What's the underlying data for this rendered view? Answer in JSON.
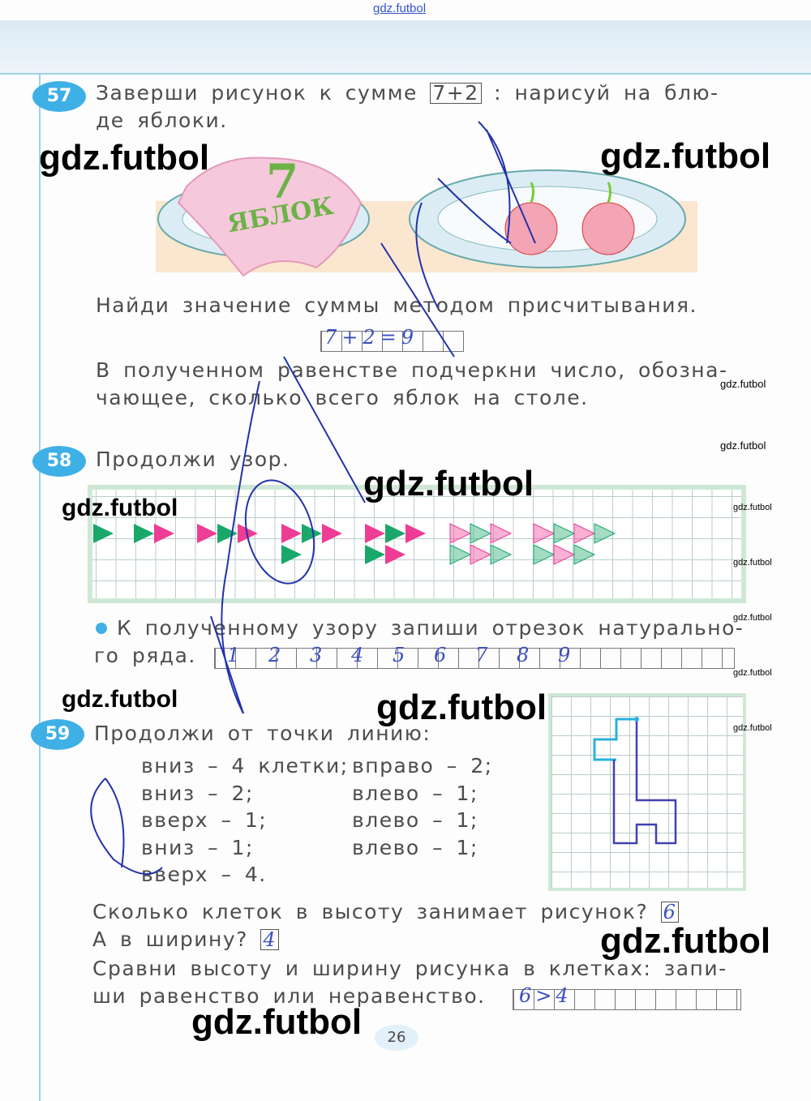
{
  "site_header": "gdz.futbol",
  "watermark": "gdz.futbol",
  "page_number": "26",
  "task57": {
    "number": "57",
    "line1_a": "Заверши рисунок к сумме",
    "sum_a": "7",
    "sum_op": "+",
    "sum_b": "2",
    "line1_b": ": нарисуй на блю-",
    "line2": "де яблоки.",
    "napkin_number": "7",
    "napkin_word": "ЯБЛОК",
    "line3": "Найди значение суммы методом присчитывания.",
    "answer_equation": "7+2=9",
    "line4": "В полученном равенстве подчеркни число, обозна-",
    "line5": "чающее, сколько всего яблок на столе."
  },
  "task58": {
    "number": "58",
    "line1": "Продолжи узор.",
    "line2": "К полученному узору запиши отрезок натурально-",
    "line3": "го ряда.",
    "answer_digits": [
      "1",
      "2",
      "3",
      "4",
      "5",
      "6",
      "7",
      "8",
      "9"
    ],
    "colors": {
      "green": "#1aa86a",
      "pink": "#ee3d95"
    }
  },
  "task59": {
    "number": "59",
    "line1": "Продолжи от точки линию:",
    "steps_left": [
      "вниз – 4 клетки;",
      "вниз – 2;",
      "вверх – 1;",
      "вниз – 1;",
      "вверх – 4."
    ],
    "steps_right": [
      "вправо – 2;",
      "влево – 1;",
      "влево – 1;",
      "влево – 1;"
    ],
    "q1": "Сколько клеток в высоту занимает рисунок?",
    "a1": "6",
    "q2": "А в ширину?",
    "a2": "4",
    "q3a": "Сравни высоту и ширину рисунка в клетках: запи-",
    "q3b": "ши равенство или неравенство.",
    "a3": "6>4"
  }
}
